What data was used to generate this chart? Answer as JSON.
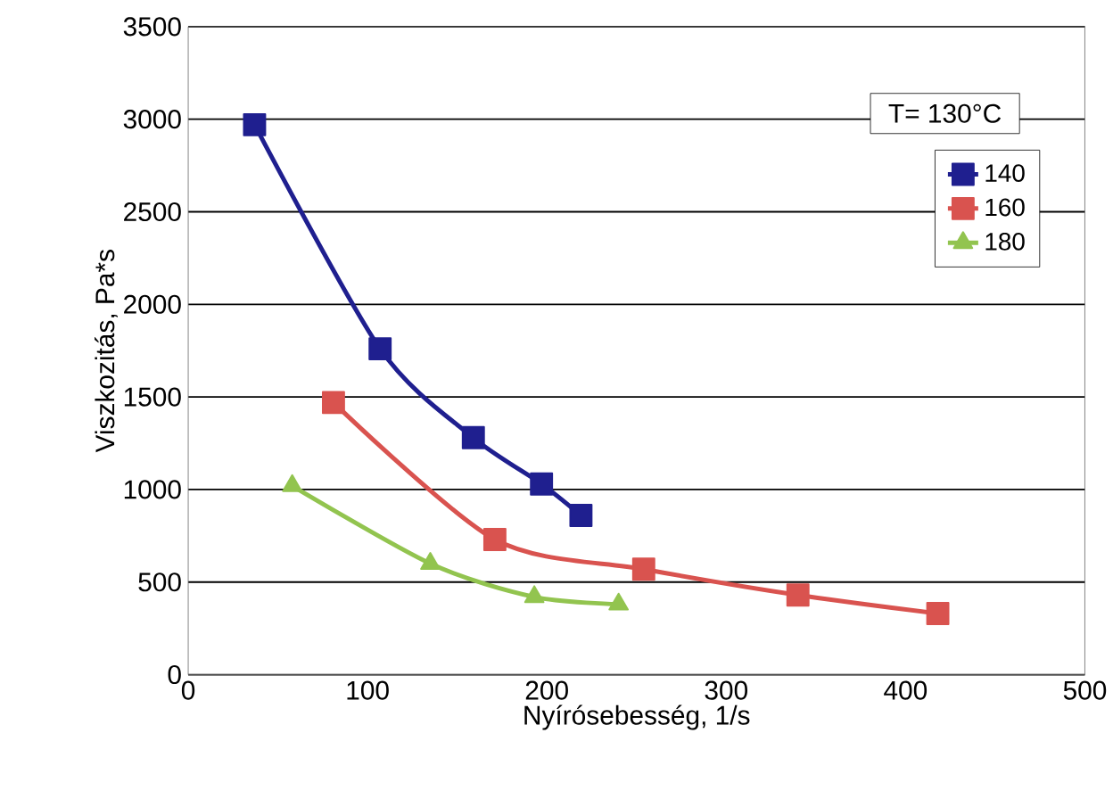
{
  "chart_data": {
    "type": "line",
    "xlabel": "Nyírósebesség, 1/s",
    "ylabel": "Viszkozitás, Pa*s",
    "annotations": [
      "T= 130°C"
    ],
    "xlim": [
      0,
      500
    ],
    "xticks": [
      0,
      100,
      200,
      300,
      400,
      500
    ],
    "ylim": [
      0,
      3500
    ],
    "yticks": [
      0,
      500,
      1000,
      1500,
      2000,
      2500,
      3000,
      3500
    ],
    "grid": "y",
    "legend": "top right",
    "marker": "square",
    "line_style": "solid",
    "series": [
      {
        "name": "140",
        "color": "#1f1f8f",
        "x": [
          37,
          107,
          159,
          197,
          219
        ],
        "values": [
          2970,
          1760,
          1280,
          1030,
          860
        ]
      },
      {
        "name": "160",
        "color": "#d9534f",
        "x": [
          81,
          171,
          254,
          340,
          418
        ],
        "values": [
          1470,
          730,
          570,
          430,
          330
        ]
      },
      {
        "name": "180",
        "color": "#92c44f",
        "marker": "triangle",
        "x": [
          58,
          135,
          193,
          240
        ],
        "values": [
          1020,
          600,
          420,
          380
        ]
      }
    ]
  }
}
